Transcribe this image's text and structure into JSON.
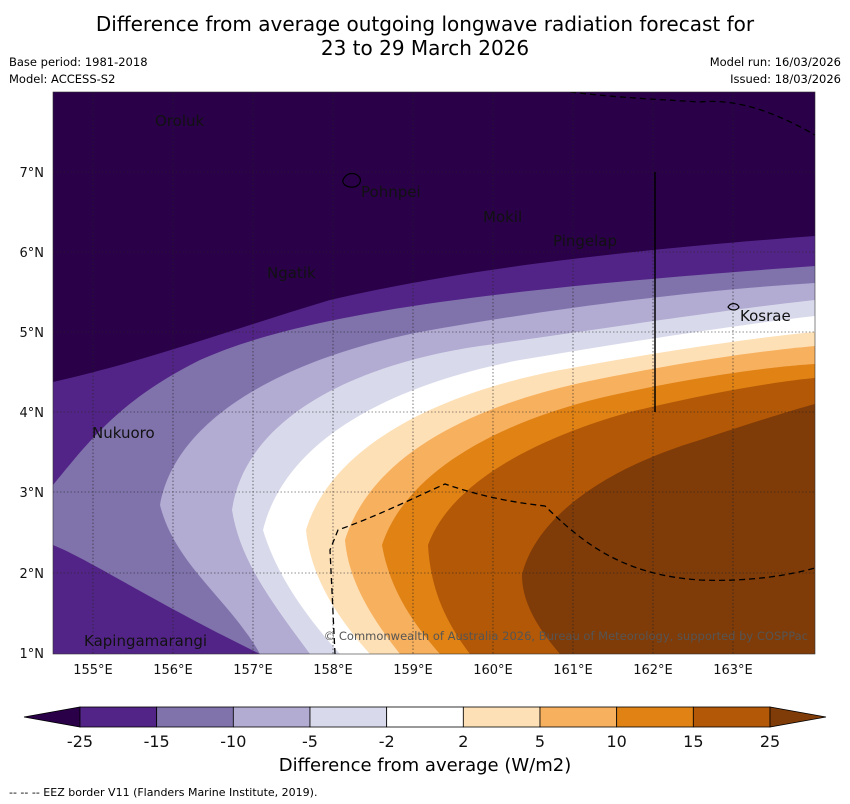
{
  "header": {
    "title_line1": "Difference from average outgoing longwave radiation forecast for",
    "title_line2": "23 to 29 March 2026",
    "base_period": "Base period: 1981-2018",
    "model": "Model: ACCESS-S2",
    "model_run": "Model run: 16/03/2026",
    "issued": "Issued: 18/03/2026"
  },
  "map": {
    "places": [
      "Oroluk",
      "Pohnpei",
      "Mokil",
      "Pingelap",
      "Ngatik",
      "Kosrae",
      "Nukuoro",
      "Kapingamarangi"
    ],
    "lat_labels": [
      "7°N",
      "6°N",
      "5°N",
      "4°N",
      "3°N",
      "2°N",
      "1°N"
    ],
    "lon_labels": [
      "155°E",
      "156°E",
      "157°E",
      "158°E",
      "159°E",
      "160°E",
      "161°E",
      "162°E",
      "163°E"
    ],
    "copyright": "© Commonwealth of Australia 2026, Bureau of Meteorology, supported by COSPPac"
  },
  "colorbar": {
    "tick_labels": [
      "-25",
      "-15",
      "-10",
      "-5",
      "-2",
      "2",
      "5",
      "10",
      "15",
      "25"
    ],
    "colors": [
      "#2a0049",
      "#532487",
      "#8073ac",
      "#b2abd2",
      "#d8daeb",
      "#ffffff",
      "#fee0b6",
      "#f7b05e",
      "#e08214",
      "#b35806",
      "#7f3b08"
    ],
    "label": "Difference from average (W/m2)"
  },
  "footer": {
    "eez_note": "-- -- -- EEZ border V11 (Flanders Marine Institute, 2019)."
  }
}
